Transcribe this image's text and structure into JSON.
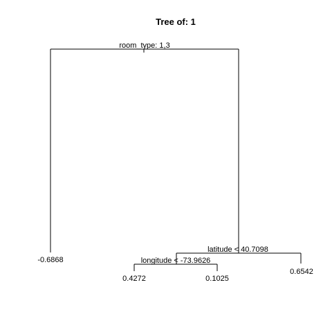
{
  "title": "Tree of: 1",
  "tree": {
    "root": {
      "split": "room_type: 1,3"
    },
    "left_leaf": {
      "value": "-0.6868"
    },
    "right_node": {
      "split": "latitude < 40.7098"
    },
    "inner_node": {
      "split": "longitude < -73.9626"
    },
    "leaf_a": {
      "value": "0.4272"
    },
    "leaf_b": {
      "value": "0.1025"
    },
    "leaf_c": {
      "value": "0.6542"
    }
  }
}
